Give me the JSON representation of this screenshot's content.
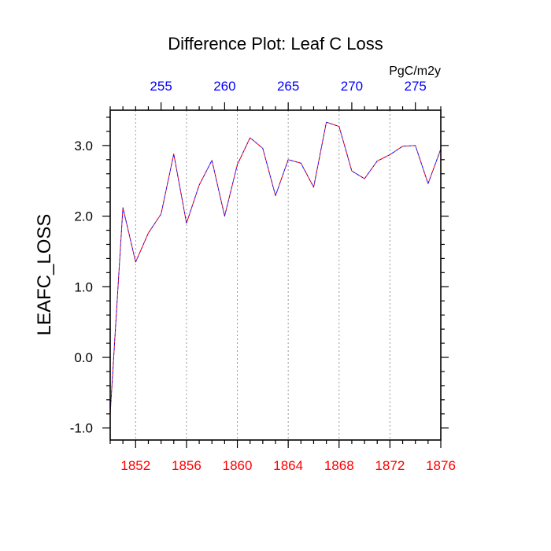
{
  "chart_data": {
    "type": "line",
    "title": "Difference Plot: Leaf C Loss",
    "ylabel": "LEAFC_LOSS",
    "top_axis_units": "PgC/m2y",
    "xlim": [
      1850,
      1876
    ],
    "ylim": [
      -1.17,
      3.5
    ],
    "y_ticks": [
      -1.0,
      0.0,
      1.0,
      2.0,
      3.0
    ],
    "y_tick_labels": [
      "-1.0",
      "0.0",
      "1.0",
      "2.0",
      "3.0"
    ],
    "x_ticks_bottom": [
      1852,
      1856,
      1860,
      1864,
      1868,
      1872,
      1876
    ],
    "x_ticks_bottom_labels": [
      "1852",
      "1856",
      "1860",
      "1864",
      "1868",
      "1872",
      "1876"
    ],
    "x_ticks_top_labels": [
      "255",
      "260",
      "265",
      "270",
      "275"
    ],
    "x_ticks_top_positions": [
      1854,
      1859,
      1864,
      1869,
      1874
    ],
    "grid": "vertical dotted at bottom major ticks",
    "colors": {
      "bottom_tick_labels": "#ff0000",
      "top_tick_labels": "#0000ff",
      "series_a": "#ff0000",
      "series_b": "#0000ff"
    },
    "series": [
      {
        "x": [
          1850,
          1851,
          1852,
          1853,
          1854,
          1855,
          1856,
          1857,
          1858,
          1859,
          1860,
          1861,
          1862,
          1863,
          1864,
          1865,
          1866,
          1867,
          1868,
          1869,
          1870,
          1871,
          1872,
          1873,
          1874,
          1875,
          1876
        ],
        "values": [
          -0.8,
          2.12,
          1.35,
          1.76,
          2.03,
          2.88,
          1.9,
          2.44,
          2.79,
          2.0,
          2.73,
          3.11,
          2.96,
          2.29,
          2.8,
          2.75,
          2.41,
          3.33,
          3.27,
          2.64,
          2.53,
          2.78,
          2.87,
          2.99,
          3.0,
          2.46,
          2.95
        ]
      }
    ]
  }
}
